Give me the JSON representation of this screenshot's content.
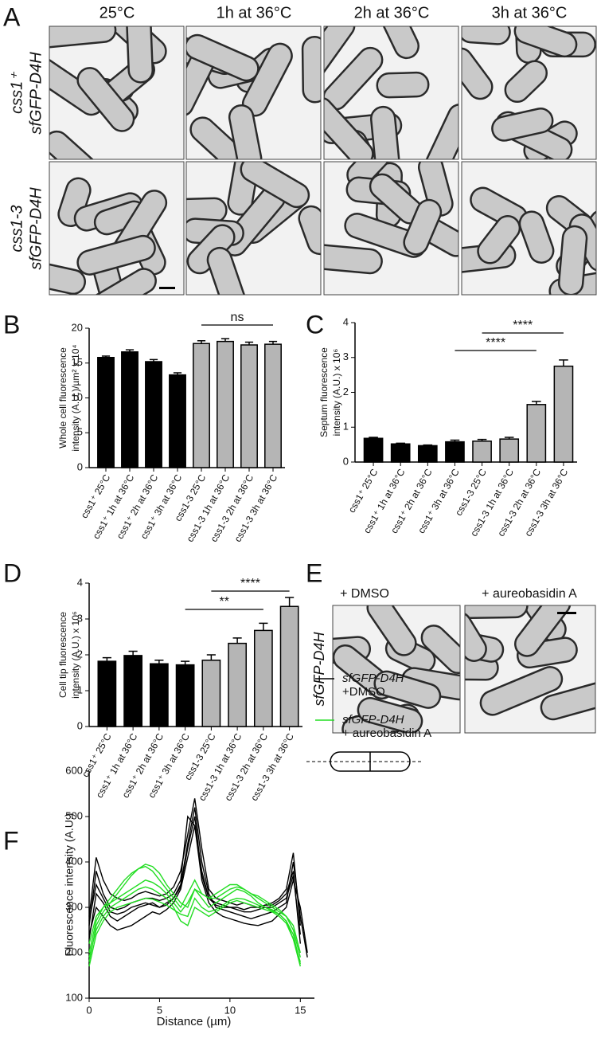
{
  "figure": {
    "panels": [
      "A",
      "B",
      "C",
      "D",
      "E",
      "F"
    ],
    "conditions": [
      "25°C",
      "1h at 36°C",
      "2h at 36°C",
      "3h at 36°C"
    ],
    "strains": [
      [
        "css1⁺",
        "sfGFP-D4H"
      ],
      [
        "css1-3",
        "sfGFP-D4H"
      ]
    ],
    "treatments": [
      "+ DMSO",
      "+ aureobasidin A"
    ],
    "e_strain": "sfGFP-D4H"
  },
  "chart_data": [
    {
      "type": "bar",
      "ylabel": [
        "Whole cell fluorescence",
        "intensity (A.U.)/µm² x 10⁴"
      ],
      "categories": [
        "css1⁺ 25°C",
        "css1⁺ 1h at 36°C",
        "css1⁺ 2h at 36°C",
        "css1⁺ 3h at 36°C",
        "css1-3 25°C",
        "css1-3 1h at 36°C",
        "css1-3 2h at 36°C",
        "css1-3 3h at 36°C"
      ],
      "values": [
        15.8,
        16.6,
        15.2,
        13.3,
        17.8,
        18.1,
        17.6,
        17.7
      ],
      "errors": [
        0.2,
        0.3,
        0.3,
        0.3,
        0.4,
        0.4,
        0.4,
        0.4
      ],
      "colors": [
        "#000000",
        "#000000",
        "#000000",
        "#000000",
        "#b5b5b5",
        "#b5b5b5",
        "#b5b5b5",
        "#b5b5b5"
      ],
      "ylim": [
        0,
        20
      ],
      "yticks": [
        0,
        5,
        10,
        15,
        20
      ],
      "annotations": [
        "ns"
      ]
    },
    {
      "type": "bar",
      "ylabel": [
        "Septum fluorescence",
        "intensity (A.U.) x 10⁶"
      ],
      "categories": [
        "css1⁺ 25°C",
        "css1⁺ 1h at 36°C",
        "css1⁺ 2h at 36°C",
        "css1⁺ 3h at 36°C",
        "css1-3 25°C",
        "css1-3 1h at 36°C",
        "css1-3 2h at 36°C",
        "css1-3 3h at 36°C"
      ],
      "values": [
        0.68,
        0.52,
        0.47,
        0.58,
        0.6,
        0.66,
        1.65,
        2.75
      ],
      "errors": [
        0.03,
        0.02,
        0.02,
        0.05,
        0.05,
        0.05,
        0.09,
        0.18
      ],
      "colors": [
        "#000000",
        "#000000",
        "#000000",
        "#000000",
        "#b5b5b5",
        "#b5b5b5",
        "#b5b5b5",
        "#b5b5b5"
      ],
      "ylim": [
        0,
        4
      ],
      "yticks": [
        0,
        1,
        2,
        3,
        4
      ],
      "annotations": [
        "****",
        "****"
      ]
    },
    {
      "type": "bar",
      "ylabel": [
        "Cell tip fluorescence",
        "intensity (A.U.) x 10⁶"
      ],
      "categories": [
        "css1⁺ 25°C",
        "css1⁺ 1h at 36°C",
        "css1⁺ 2h at 36°C",
        "css1⁺ 3h at 36°C",
        "css1-3 25°C",
        "css1-3 1h at 36°C",
        "css1-3 2h at 36°C",
        "css1-3 3h at 36°C"
      ],
      "values": [
        1.82,
        1.98,
        1.75,
        1.72,
        1.85,
        2.32,
        2.68,
        3.35
      ],
      "errors": [
        0.1,
        0.12,
        0.1,
        0.1,
        0.15,
        0.15,
        0.2,
        0.25
      ],
      "colors": [
        "#000000",
        "#000000",
        "#000000",
        "#000000",
        "#b5b5b5",
        "#b5b5b5",
        "#b5b5b5",
        "#b5b5b5"
      ],
      "ylim": [
        0,
        4
      ],
      "yticks": [
        0,
        1,
        2,
        3,
        4
      ],
      "annotations": [
        "****",
        "**"
      ]
    },
    {
      "type": "line",
      "xlabel": "Distance (µm)",
      "ylabel": "Fluorescence intensity (A.U.)",
      "xlim": [
        0,
        16
      ],
      "xticks": [
        0,
        5,
        10,
        15
      ],
      "ylim": [
        100,
        600
      ],
      "yticks": [
        100,
        200,
        300,
        400,
        500,
        600
      ],
      "x": [
        0,
        0.5,
        1,
        1.5,
        2,
        2.5,
        3,
        3.5,
        4,
        4.5,
        5,
        5.5,
        6,
        6.5,
        7,
        7.5,
        8,
        8.5,
        9,
        9.5,
        10,
        10.5,
        11,
        11.5,
        12,
        12.5,
        13,
        13.5,
        14,
        14.5,
        15,
        15.5
      ],
      "series": [
        {
          "name": [
            "sfGFP-D4H",
            "+DMSO"
          ],
          "color": "#000000",
          "traces": [
            [
              280,
              410,
              360,
              330,
              320,
              315,
              320,
              330,
              335,
              330,
              325,
              330,
              345,
              380,
              460,
              540,
              430,
              340,
              320,
              315,
              310,
              305,
              310,
              305,
              300,
              305,
              310,
              320,
              340,
              420,
              260,
              null
            ],
            [
              260,
              380,
              330,
              300,
              295,
              300,
              310,
              315,
              320,
              320,
              315,
              320,
              330,
              360,
              500,
              480,
              380,
              320,
              310,
              305,
              300,
              300,
              295,
              300,
              300,
              305,
              305,
              315,
              330,
              380,
              220,
              null
            ],
            [
              230,
              330,
              310,
              280,
              270,
              280,
              290,
              300,
              305,
              310,
              300,
              305,
              320,
              350,
              440,
              520,
              400,
              330,
              300,
              295,
              290,
              285,
              280,
              275,
              280,
              285,
              290,
              300,
              310,
              400,
              280,
              190
            ],
            [
              240,
              300,
              280,
              260,
              250,
              255,
              260,
              270,
              280,
              290,
              285,
              295,
              310,
              340,
              410,
              480,
              360,
              310,
              290,
              280,
              275,
              270,
              265,
              262,
              260,
              265,
              270,
              285,
              300,
              360,
              300,
              200
            ],
            [
              270,
              350,
              320,
              290,
              285,
              290,
              300,
              305,
              310,
              305,
              300,
              310,
              320,
              345,
              430,
              500,
              370,
              320,
              305,
              300,
              300,
              295,
              290,
              290,
              295,
              300,
              300,
              310,
              320,
              370,
              240,
              null
            ]
          ]
        },
        {
          "name": [
            "sfGFP-D4H",
            "+ aureobasidin A"
          ],
          "color": "#22dd22",
          "traces": [
            [
              180,
              260,
              290,
              310,
              330,
              350,
              370,
              385,
              390,
              380,
              360,
              340,
              320,
              300,
              330,
              360,
              330,
              320,
              330,
              340,
              350,
              350,
              340,
              330,
              320,
              310,
              300,
              290,
              280,
              250,
              190,
              null
            ],
            [
              200,
              270,
              300,
              310,
              320,
              330,
              340,
              350,
              360,
              355,
              345,
              330,
              310,
              290,
              310,
              340,
              320,
              300,
              310,
              320,
              330,
              340,
              335,
              325,
              310,
              300,
              295,
              285,
              270,
              230,
              180,
              null
            ],
            [
              190,
              250,
              280,
              300,
              310,
              320,
              330,
              340,
              345,
              340,
              330,
              320,
              300,
              270,
              260,
              300,
              290,
              280,
              290,
              300,
              310,
              315,
              310,
              305,
              300,
              295,
              290,
              280,
              265,
              230,
              170,
              null
            ],
            [
              220,
              280,
              300,
              320,
              340,
              360,
              375,
              385,
              395,
              390,
              375,
              350,
              330,
              310,
              300,
              340,
              330,
              320,
              320,
              330,
              340,
              345,
              340,
              330,
              325,
              315,
              305,
              295,
              280,
              260,
              200,
              null
            ],
            [
              170,
              240,
              270,
              290,
              300,
              305,
              310,
              315,
              320,
              318,
              312,
              305,
              295,
              285,
              280,
              320,
              300,
              290,
              295,
              305,
              315,
              320,
              318,
              312,
              305,
              300,
              292,
              285,
              270,
              240,
              175,
              null
            ]
          ]
        }
      ]
    }
  ]
}
